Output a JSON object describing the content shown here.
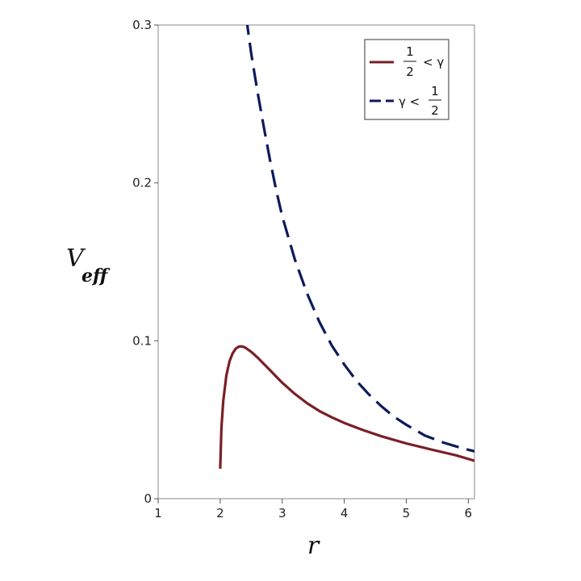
{
  "chart_data": {
    "type": "line",
    "title": "",
    "xlabel": "r",
    "ylabel": {
      "main": "V",
      "sub": "eff"
    },
    "xlim": [
      1,
      6.1
    ],
    "ylim": [
      0,
      0.3
    ],
    "x_ticks": [
      1,
      2,
      3,
      4,
      5,
      6
    ],
    "x_tick_labels": [
      "1",
      "2",
      "3",
      "4",
      "5",
      "6"
    ],
    "y_ticks": [
      0,
      0.1,
      0.2,
      0.3
    ],
    "y_tick_labels": [
      "0",
      "0.1",
      "0.2",
      "0.3"
    ],
    "grid": false,
    "legend_position": "top-right",
    "series": [
      {
        "name": "1/2 < γ",
        "legend": {
          "frac_num": "1",
          "frac_den": "2",
          "before": "",
          "after": "< γ"
        },
        "color": "#7a1f25",
        "dash": "solid",
        "x": [
          2.0,
          2.02,
          2.05,
          2.1,
          2.15,
          2.2,
          2.25,
          2.3,
          2.35,
          2.4,
          2.5,
          2.6,
          2.7,
          2.8,
          2.9,
          3.0,
          3.2,
          3.4,
          3.6,
          3.8,
          4.0,
          4.3,
          4.6,
          5.0,
          5.4,
          5.8,
          6.1
        ],
        "y": [
          0.019,
          0.045,
          0.062,
          0.078,
          0.087,
          0.092,
          0.095,
          0.0963,
          0.0965,
          0.0958,
          0.093,
          0.0895,
          0.0855,
          0.0815,
          0.0775,
          0.0735,
          0.0665,
          0.0605,
          0.0555,
          0.0515,
          0.048,
          0.0435,
          0.0395,
          0.035,
          0.0312,
          0.0275,
          0.024
        ]
      },
      {
        "name": "γ < 1/2",
        "legend": {
          "frac_num": "1",
          "frac_den": "2",
          "before": "γ <",
          "after": ""
        },
        "color": "#0d1a5c",
        "dash": "dashed",
        "x": [
          2.42,
          2.5,
          2.6,
          2.7,
          2.8,
          2.9,
          3.0,
          3.2,
          3.4,
          3.6,
          3.8,
          4.0,
          4.2,
          4.4,
          4.6,
          4.8,
          5.0,
          5.3,
          5.6,
          5.9,
          6.1
        ],
        "y": [
          0.305,
          0.282,
          0.258,
          0.236,
          0.215,
          0.196,
          0.179,
          0.152,
          0.13,
          0.112,
          0.097,
          0.085,
          0.0745,
          0.066,
          0.0585,
          0.052,
          0.0468,
          0.04,
          0.0355,
          0.032,
          0.03
        ]
      }
    ]
  }
}
